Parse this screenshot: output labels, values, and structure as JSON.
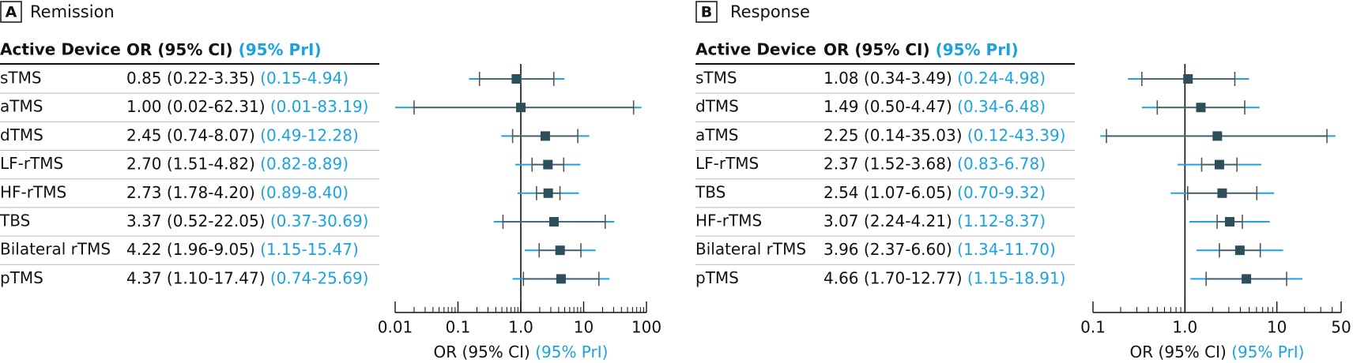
{
  "colors": {
    "text": "#111111",
    "pri": "#1aa3e0",
    "marker": "#2d4f5c",
    "line": "#555555"
  },
  "chart_data": [
    {
      "type": "forest",
      "panel_letter": "A",
      "title": "Remission",
      "col_device_header": "Active Device",
      "col_or_header": "OR (95% CI)",
      "col_pri_header": "(95% PrI)",
      "xlabel": "OR (95% CI)",
      "xlabel_pri": "(95% PrI)",
      "scale": "log",
      "xlim": [
        0.01,
        100
      ],
      "ticks": [
        0.01,
        0.1,
        1.0,
        10,
        100
      ],
      "tick_labels": [
        "0.01",
        "0.1",
        "1.0",
        "10",
        "100"
      ],
      "reference_line": 1.0,
      "rows": [
        {
          "device": "sTMS",
          "or": 0.85,
          "ci": [
            0.22,
            3.35
          ],
          "pri": [
            0.15,
            4.94
          ],
          "or_text": "0.85 (0.22-3.35)",
          "pri_text": "(0.15-4.94)"
        },
        {
          "device": "aTMS",
          "or": 1.0,
          "ci": [
            0.02,
            62.31
          ],
          "pri": [
            0.01,
            83.19
          ],
          "or_text": "1.00 (0.02-62.31)",
          "pri_text": "(0.01-83.19)"
        },
        {
          "device": "dTMS",
          "or": 2.45,
          "ci": [
            0.74,
            8.07
          ],
          "pri": [
            0.49,
            12.28
          ],
          "or_text": "2.45 (0.74-8.07)",
          "pri_text": "(0.49-12.28)"
        },
        {
          "device": "LF-rTMS",
          "or": 2.7,
          "ci": [
            1.51,
            4.82
          ],
          "pri": [
            0.82,
            8.89
          ],
          "or_text": "2.70 (1.51-4.82)",
          "pri_text": "(0.82-8.89)"
        },
        {
          "device": "HF-rTMS",
          "or": 2.73,
          "ci": [
            1.78,
            4.2
          ],
          "pri": [
            0.89,
            8.4
          ],
          "or_text": "2.73 (1.78-4.20)",
          "pri_text": "(0.89-8.40)"
        },
        {
          "device": "TBS",
          "or": 3.37,
          "ci": [
            0.52,
            22.05
          ],
          "pri": [
            0.37,
            30.69
          ],
          "or_text": "3.37 (0.52-22.05)",
          "pri_text": "(0.37-30.69)"
        },
        {
          "device": "Bilateral rTMS",
          "or": 4.22,
          "ci": [
            1.96,
            9.05
          ],
          "pri": [
            1.15,
            15.47
          ],
          "or_text": "4.22 (1.96-9.05)",
          "pri_text": "(1.15-15.47)"
        },
        {
          "device": "pTMS",
          "or": 4.37,
          "ci": [
            1.1,
            17.47
          ],
          "pri": [
            0.74,
            25.69
          ],
          "or_text": "4.37 (1.10-17.47)",
          "pri_text": "(0.74-25.69)"
        }
      ]
    },
    {
      "type": "forest",
      "panel_letter": "B",
      "title": "Response",
      "col_device_header": "Active Device",
      "col_or_header": "OR (95% CI)",
      "col_pri_header": "(95% PrI)",
      "xlabel": "OR (95% CI)",
      "xlabel_pri": "(95% PrI)",
      "scale": "log",
      "xlim": [
        0.1,
        50
      ],
      "ticks": [
        0.1,
        1.0,
        10,
        50
      ],
      "tick_labels": [
        "0.1",
        "1.0",
        "10",
        "50"
      ],
      "reference_line": 1.0,
      "rows": [
        {
          "device": "sTMS",
          "or": 1.08,
          "ci": [
            0.34,
            3.49
          ],
          "pri": [
            0.24,
            4.98
          ],
          "or_text": "1.08 (0.34-3.49)",
          "pri_text": "(0.24-4.98)"
        },
        {
          "device": "dTMS",
          "or": 1.49,
          "ci": [
            0.5,
            4.47
          ],
          "pri": [
            0.34,
            6.48
          ],
          "or_text": "1.49 (0.50-4.47)",
          "pri_text": "(0.34-6.48)"
        },
        {
          "device": "aTMS",
          "or": 2.25,
          "ci": [
            0.14,
            35.03
          ],
          "pri": [
            0.12,
            43.39
          ],
          "or_text": "2.25 (0.14-35.03)",
          "pri_text": "(0.12-43.39)"
        },
        {
          "device": "LF-rTMS",
          "or": 2.37,
          "ci": [
            1.52,
            3.68
          ],
          "pri": [
            0.83,
            6.78
          ],
          "or_text": "2.37 (1.52-3.68)",
          "pri_text": "(0.83-6.78)"
        },
        {
          "device": "TBS",
          "or": 2.54,
          "ci": [
            1.07,
            6.05
          ],
          "pri": [
            0.7,
            9.32
          ],
          "or_text": "2.54 (1.07-6.05)",
          "pri_text": "(0.70-9.32)"
        },
        {
          "device": "HF-rTMS",
          "or": 3.07,
          "ci": [
            2.24,
            4.21
          ],
          "pri": [
            1.12,
            8.37
          ],
          "or_text": "3.07 (2.24-4.21)",
          "pri_text": "(1.12-8.37)"
        },
        {
          "device": "Bilateral rTMS",
          "or": 3.96,
          "ci": [
            2.37,
            6.6
          ],
          "pri": [
            1.34,
            11.7
          ],
          "or_text": "3.96 (2.37-6.60)",
          "pri_text": "(1.34-11.70)"
        },
        {
          "device": "pTMS",
          "or": 4.66,
          "ci": [
            1.7,
            12.77
          ],
          "pri": [
            1.15,
            18.91
          ],
          "or_text": "4.66 (1.70-12.77)",
          "pri_text": "(1.15-18.91)"
        }
      ]
    }
  ]
}
